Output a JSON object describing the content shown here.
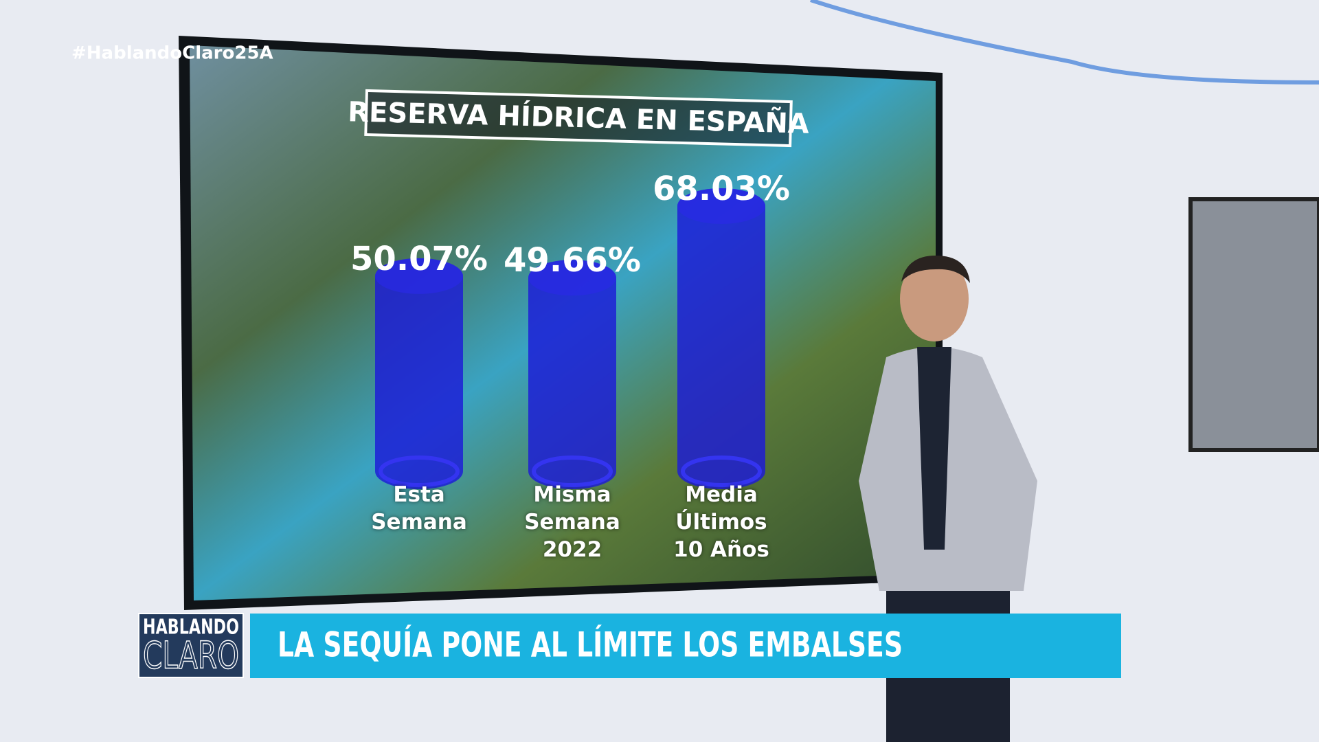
{
  "hashtag": "#HablandoClaro25A",
  "logo": {
    "line1": "HABLANDO",
    "line2": "CLARO"
  },
  "headline": "LA SEQUÍA PONE AL LÍMITE LOS EMBALSES",
  "chart_data": {
    "type": "bar",
    "title": "RESERVA HÍDRICA EN ESPAÑA",
    "categories": [
      "Esta Semana",
      "Misma Semana 2022",
      "Media Últimos 10 Años"
    ],
    "values": [
      50.07,
      49.66,
      68.03
    ],
    "value_labels": [
      "50.07%",
      "49.66%",
      "68.03%"
    ],
    "color": "#1c1ad8"
  }
}
